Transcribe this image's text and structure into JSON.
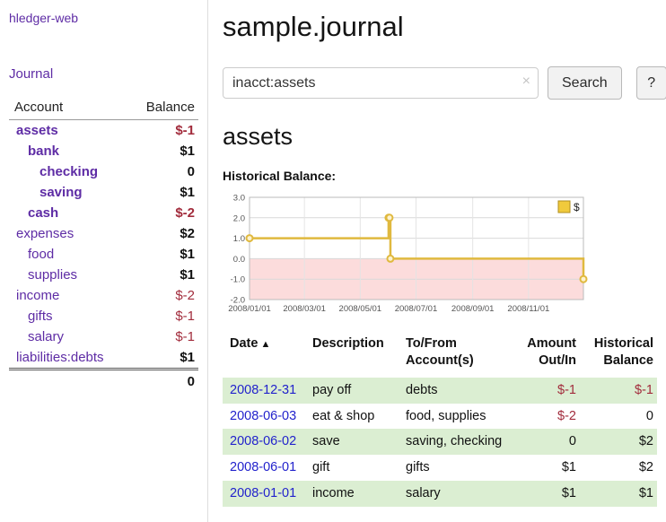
{
  "colors": {
    "link_purple": "#5e2ca5",
    "date_blue": "#2222cc",
    "negative_red": "#a22c3c",
    "row_green": "#dbeed2",
    "chart_line": "#e0b93f",
    "chart_legend_fill": "#f0ca3c",
    "chart_fill_negative": "#fcdcdc"
  },
  "sidebar": {
    "app_title": "hledger-web",
    "journal_link": "Journal",
    "accounts": {
      "header_account": "Account",
      "header_balance": "Balance",
      "rows": [
        {
          "name": "assets",
          "balance": "$-1",
          "indent": 0,
          "name_bold": true,
          "balance_bold": true,
          "negative": true
        },
        {
          "name": "bank",
          "balance": "$1",
          "indent": 1,
          "name_bold": true,
          "balance_bold": true,
          "negative": false
        },
        {
          "name": "checking",
          "balance": "0",
          "indent": 2,
          "name_bold": true,
          "balance_bold": true,
          "negative": false
        },
        {
          "name": "saving",
          "balance": "$1",
          "indent": 2,
          "name_bold": true,
          "balance_bold": true,
          "negative": false
        },
        {
          "name": "cash",
          "balance": "$-2",
          "indent": 1,
          "name_bold": true,
          "balance_bold": true,
          "negative": true
        },
        {
          "name": "expenses",
          "balance": "$2",
          "indent": 0,
          "name_bold": false,
          "balance_bold": true,
          "negative": false
        },
        {
          "name": "food",
          "balance": "$1",
          "indent": 1,
          "name_bold": false,
          "balance_bold": true,
          "negative": false
        },
        {
          "name": "supplies",
          "balance": "$1",
          "indent": 1,
          "name_bold": false,
          "balance_bold": true,
          "negative": false
        },
        {
          "name": "income",
          "balance": "$-2",
          "indent": 0,
          "name_bold": false,
          "balance_bold": false,
          "negative": true
        },
        {
          "name": "gifts",
          "balance": "$-1",
          "indent": 1,
          "name_bold": false,
          "balance_bold": false,
          "negative": true
        },
        {
          "name": "salary",
          "balance": "$-1",
          "indent": 1,
          "name_bold": false,
          "balance_bold": false,
          "negative": true
        },
        {
          "name": "liabilities:debts",
          "balance": "$1",
          "indent": 0,
          "name_bold": false,
          "balance_bold": true,
          "negative": false
        }
      ],
      "total": "0"
    }
  },
  "main": {
    "title": "sample.journal",
    "search": {
      "value": "inacct:assets",
      "clear_icon": "×",
      "button_label": "Search",
      "help_label": "?"
    },
    "account_heading": "assets",
    "chart_label": "Historical Balance:",
    "register": {
      "headers": [
        {
          "lines": [
            "Date"
          ],
          "sort_icon": "▲",
          "align": "left"
        },
        {
          "lines": [
            "Description"
          ],
          "align": "left"
        },
        {
          "lines": [
            "To/From",
            "Account(s)"
          ],
          "align": "left"
        },
        {
          "lines": [
            "Amount",
            "Out/In"
          ],
          "align": "right"
        },
        {
          "lines": [
            "Historical",
            "Balance"
          ],
          "align": "right"
        }
      ],
      "rows": [
        {
          "date": "2008-12-31",
          "description": "pay off",
          "accounts": "debts",
          "amount": "$-1",
          "balance": "$-1",
          "amount_negative": true,
          "balance_negative": true
        },
        {
          "date": "2008-06-03",
          "description": "eat & shop",
          "accounts": "food, supplies",
          "amount": "$-2",
          "balance": "0",
          "amount_negative": true,
          "balance_negative": false
        },
        {
          "date": "2008-06-02",
          "description": "save",
          "accounts": "saving, checking",
          "amount": "0",
          "balance": "$2",
          "amount_negative": false,
          "balance_negative": false
        },
        {
          "date": "2008-06-01",
          "description": "gift",
          "accounts": "gifts",
          "amount": "$1",
          "balance": "$2",
          "amount_negative": false,
          "balance_negative": false
        },
        {
          "date": "2008-01-01",
          "description": "income",
          "accounts": "salary",
          "amount": "$1",
          "balance": "$1",
          "amount_negative": false,
          "balance_negative": false
        }
      ]
    }
  },
  "chart_data": {
    "type": "line",
    "step": true,
    "title": "Historical Balance:",
    "legend": [
      {
        "label": "$"
      }
    ],
    "ylim": [
      -2.0,
      3.0
    ],
    "yticks": [
      3.0,
      2.0,
      1.0,
      0.0,
      -1.0,
      -2.0
    ],
    "x_start": "2008-01-01",
    "x_end": "2008-12-31",
    "xticks": [
      {
        "date": "2008-01-01",
        "label": "2008/01/01"
      },
      {
        "date": "2008-03-01",
        "label": "2008/03/01"
      },
      {
        "date": "2008-05-01",
        "label": "2008/05/01"
      },
      {
        "date": "2008-07-01",
        "label": "2008/07/01"
      },
      {
        "date": "2008-09-01",
        "label": "2008/09/01"
      },
      {
        "date": "2008-11-01",
        "label": "2008/11/01"
      }
    ],
    "series": [
      {
        "name": "$",
        "points": [
          {
            "date": "2008-01-01",
            "value": 1
          },
          {
            "date": "2008-06-01",
            "value": 2
          },
          {
            "date": "2008-06-02",
            "value": 2
          },
          {
            "date": "2008-06-03",
            "value": 0
          },
          {
            "date": "2008-12-31",
            "value": -1
          }
        ]
      }
    ]
  }
}
